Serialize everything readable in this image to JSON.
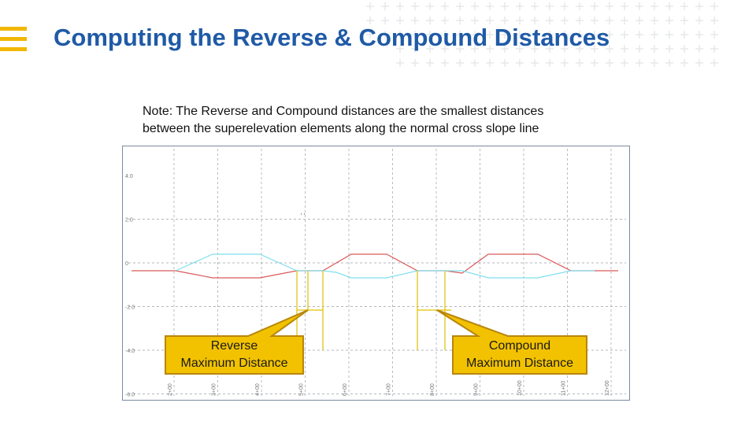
{
  "slide": {
    "title": "Computing the Reverse & Compound Distances",
    "note_line1": "Note: The Reverse and Compound distances are the smallest distances",
    "note_line2": "between the superelevation elements along the normal cross slope line",
    "accent_color": "#f2b705",
    "title_color": "#1f5aa6",
    "icons": {
      "menu": "menu-icon",
      "decoration": "plus-grid-decoration"
    }
  },
  "diagram": {
    "series_colors": {
      "left_edge": "#7fe0ee",
      "right_edge": "#d9595a",
      "marker": "#e0c000"
    },
    "y_tick_labels": [
      "4.0",
      "2.0",
      "0",
      "-2.0",
      "-4.0",
      "-6.0"
    ],
    "x_tick_labels": [
      "2+00",
      "3+00",
      "4+00",
      "5+00",
      "6+00",
      "7+00",
      "8+00",
      "9+00",
      "10+00",
      "11+00",
      "12+00"
    ],
    "callouts": {
      "reverse_line1": "Reverse",
      "reverse_line2": "Maximum Distance",
      "compound_line1": "Compound",
      "compound_line2": "Maximum Distance"
    }
  }
}
